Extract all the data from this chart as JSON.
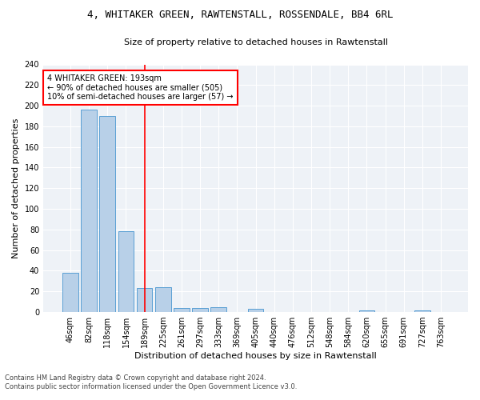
{
  "title": "4, WHITAKER GREEN, RAWTENSTALL, ROSSENDALE, BB4 6RL",
  "subtitle": "Size of property relative to detached houses in Rawtenstall",
  "xlabel": "Distribution of detached houses by size in Rawtenstall",
  "ylabel": "Number of detached properties",
  "bar_color": "#b8d0e8",
  "bar_edge_color": "#5a9fd4",
  "categories": [
    "46sqm",
    "82sqm",
    "118sqm",
    "154sqm",
    "189sqm",
    "225sqm",
    "261sqm",
    "297sqm",
    "333sqm",
    "369sqm",
    "405sqm",
    "440sqm",
    "476sqm",
    "512sqm",
    "548sqm",
    "584sqm",
    "620sqm",
    "655sqm",
    "691sqm",
    "727sqm",
    "763sqm"
  ],
  "values": [
    38,
    196,
    190,
    78,
    23,
    24,
    4,
    4,
    5,
    0,
    3,
    0,
    0,
    0,
    0,
    0,
    2,
    0,
    0,
    2,
    0
  ],
  "ylim": [
    0,
    240
  ],
  "yticks": [
    0,
    20,
    40,
    60,
    80,
    100,
    120,
    140,
    160,
    180,
    200,
    220,
    240
  ],
  "property_line_x": 4.0,
  "annotation_line1": "4 WHITAKER GREEN: 193sqm",
  "annotation_line2": "← 90% of detached houses are smaller (505)",
  "annotation_line3": "10% of semi-detached houses are larger (57) →",
  "footer_line1": "Contains HM Land Registry data © Crown copyright and database right 2024.",
  "footer_line2": "Contains public sector information licensed under the Open Government Licence v3.0.",
  "background_color": "#eef2f7",
  "grid_color": "#ffffff",
  "figure_bg": "#ffffff"
}
